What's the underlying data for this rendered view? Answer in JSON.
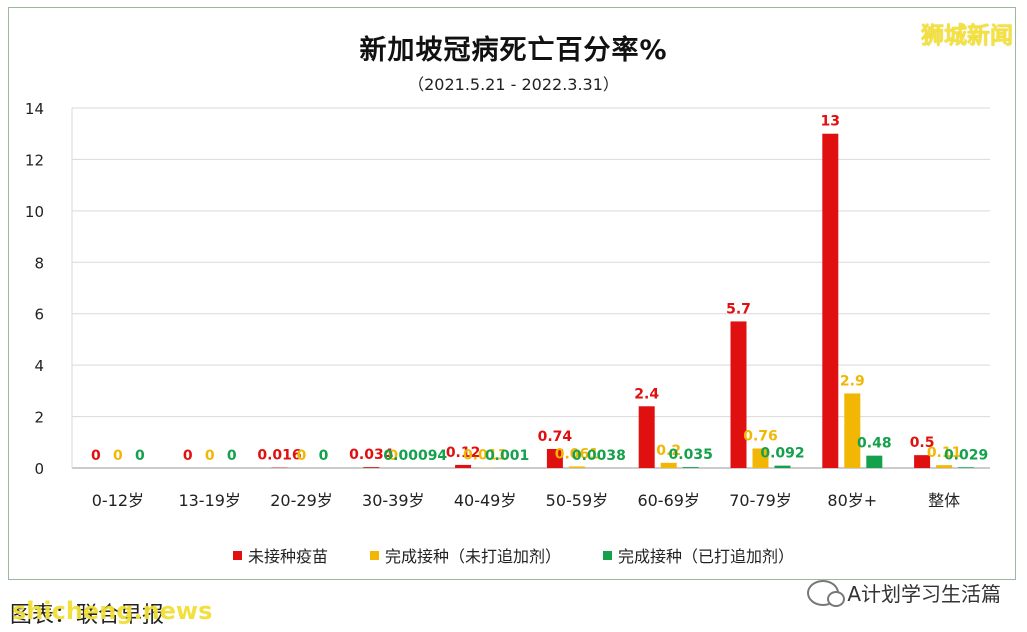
{
  "chart_data": {
    "type": "bar",
    "title": "新加坡冠病死亡百分率%",
    "subtitle": "（2021.5.21 - 2022.3.31）",
    "categories": [
      "0-12岁",
      "13-19岁",
      "20-29岁",
      "30-39岁",
      "40-49岁",
      "50-59岁",
      "60-69岁",
      "70-79岁",
      "80岁+",
      "整体"
    ],
    "ylim": [
      0,
      14
    ],
    "yticks": [
      0,
      2,
      4,
      6,
      8,
      10,
      12,
      14
    ],
    "grid": true,
    "legend_position": "bottom",
    "series": [
      {
        "name": "未接种疫苗",
        "color": "#e01010",
        "values": [
          0,
          0,
          0.016,
          0.034,
          0.12,
          0.74,
          2.4,
          5.7,
          13,
          0.5
        ],
        "labels": [
          "0",
          "0",
          "0.016",
          "0.034",
          "0.12",
          "0.74",
          "2.4",
          "5.7",
          "13",
          "0.5"
        ]
      },
      {
        "name": "完成接种（未打追加剂）",
        "color": "#f2b705",
        "values": [
          0,
          0,
          0,
          0,
          0.011,
          0.061,
          0.2,
          0.76,
          2.9,
          0.11
        ],
        "labels": [
          "0",
          "0",
          "0",
          "0",
          "0.011",
          "0.061",
          "0.2",
          "0.76",
          "2.9",
          "0.11"
        ]
      },
      {
        "name": "完成接种（已打追加剂）",
        "color": "#13a14b",
        "values": [
          0,
          0,
          0,
          0.00094,
          0.001,
          0.0038,
          0.035,
          0.092,
          0.48,
          0.029
        ],
        "labels": [
          "0",
          "0",
          "0",
          "0.00094",
          "0.001",
          "0.0038",
          "0.035",
          "0.092",
          "0.48",
          "0.029"
        ]
      }
    ]
  },
  "brand": "狮城新闻",
  "footer": {
    "source": "图表：联合早报",
    "watermark": "shicheng.news",
    "account": "A计划学习生活篇"
  }
}
